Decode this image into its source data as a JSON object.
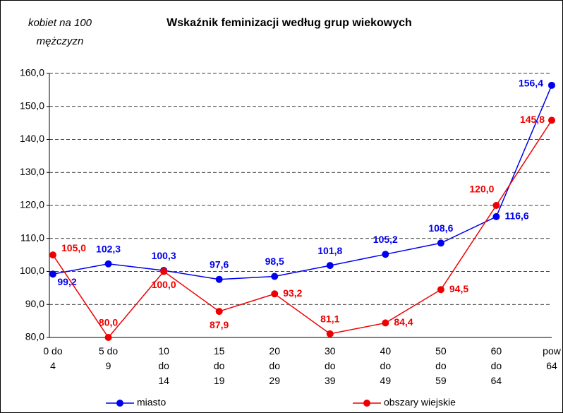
{
  "chart_data": {
    "type": "line",
    "title": "Wskaźnik feminizacji według grup wiekowych",
    "y_label": "kobiet na 100\nmężczyzn",
    "categories": [
      "0 do\n4",
      "5 do\n9",
      "10\ndo\n14",
      "15\ndo\n19",
      "20\ndo\n29",
      "30\ndo\n39",
      "40\ndo\n49",
      "50\ndo\n59",
      "60\ndo\n64",
      "pow\n64"
    ],
    "series": [
      {
        "name": "miasto",
        "color": "#0000ee",
        "values": [
          99.2,
          102.3,
          100.3,
          97.6,
          98.5,
          101.8,
          105.2,
          108.6,
          116.6,
          156.4
        ],
        "value_labels": [
          "99,2",
          "102,3",
          "100,3",
          "97,6",
          "98,5",
          "101,8",
          "105,2",
          "108,6",
          "116,6",
          "156,4"
        ]
      },
      {
        "name": "obszary wiejskie",
        "color": "#ee0000",
        "values": [
          105.0,
          80.0,
          100.0,
          87.9,
          93.2,
          81.1,
          84.4,
          94.5,
          120.0,
          145.8
        ],
        "value_labels": [
          "105,0",
          "80,0",
          "100,0",
          "87,9",
          "93,2",
          "81,1",
          "84,4",
          "94,5",
          "120,0",
          "145,8"
        ]
      }
    ],
    "ylim": [
      80,
      160
    ],
    "yticks": [
      {
        "value": 80,
        "label": "80,0"
      },
      {
        "value": 90,
        "label": "90,0"
      },
      {
        "value": 100,
        "label": "100,0"
      },
      {
        "value": 110,
        "label": "110,0"
      },
      {
        "value": 120,
        "label": "120,0"
      },
      {
        "value": 130,
        "label": "130,0"
      },
      {
        "value": 140,
        "label": "140,0"
      },
      {
        "value": 150,
        "label": "150,0"
      },
      {
        "value": 160,
        "label": "160,0"
      }
    ],
    "grid": true,
    "legend": "bottom"
  }
}
